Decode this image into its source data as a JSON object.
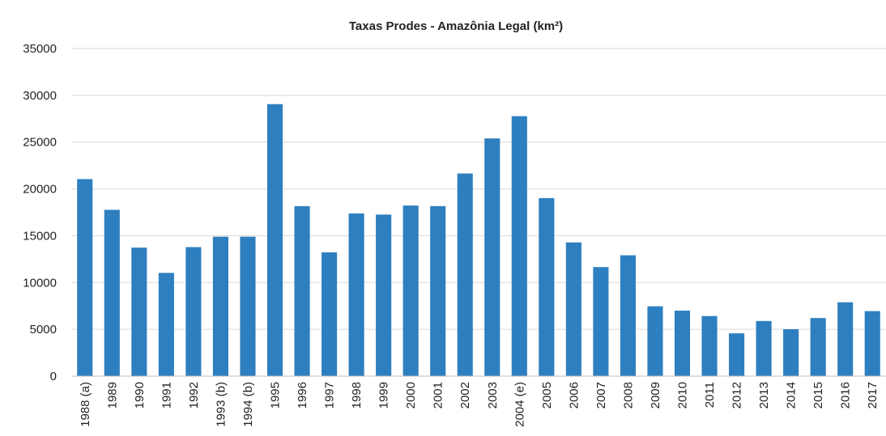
{
  "chart_data": {
    "type": "bar",
    "title": "Taxas Prodes - Amazônia Legal (km²)",
    "xlabel": "",
    "ylabel": "",
    "ylim": [
      0,
      35000
    ],
    "yticks": [
      0,
      5000,
      10000,
      15000,
      20000,
      25000,
      30000,
      35000
    ],
    "grid": true,
    "legend": "none",
    "bar_color": "#2e7fbf",
    "categories": [
      "1988 (a)",
      "1989",
      "1990",
      "1991",
      "1992",
      "1993 (b)",
      "1994 (b)",
      "1995",
      "1996",
      "1997",
      "1998",
      "1999",
      "2000",
      "2001",
      "2002",
      "2003",
      "2004 (e)",
      "2005",
      "2006",
      "2007",
      "2008",
      "2009",
      "2010",
      "2011",
      "2012",
      "2013",
      "2014",
      "2015",
      "2016",
      "2017"
    ],
    "values": [
      21050,
      17770,
      13730,
      11030,
      13786,
      14896,
      14896,
      29059,
      18161,
      13227,
      17383,
      17259,
      18226,
      18165,
      21651,
      25396,
      27772,
      19014,
      14286,
      11651,
      12911,
      7464,
      7000,
      6418,
      4571,
      5891,
      5012,
      6207,
      7893,
      6947
    ]
  }
}
